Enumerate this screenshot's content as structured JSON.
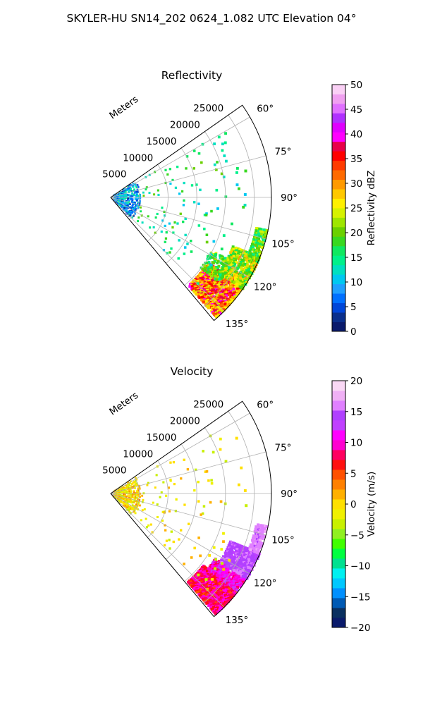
{
  "figure_title": "SKYLER-HU  SN14_202  0624_1.082 UTC Elevation 04°",
  "colors": {
    "grid": "#b0b0b0",
    "frame": "#000000",
    "reflectivity_colormap": [
      "#0a1a6b",
      "#0a2f8c",
      "#0046d8",
      "#0070ff",
      "#1fa0ff",
      "#00c8f0",
      "#00e0c0",
      "#00f08a",
      "#10e860",
      "#38d820",
      "#6ad000",
      "#9ee600",
      "#d6f200",
      "#fff000",
      "#ffc800",
      "#ff9a00",
      "#ff6a00",
      "#ff3a00",
      "#ff0000",
      "#e8004a",
      "#ff00ff",
      "#e000ff",
      "#b030ff",
      "#e070ff",
      "#f0a0f0",
      "#fad0f5"
    ],
    "velocity_colormap": [
      "#0a1a6b",
      "#0a3060",
      "#005ab4",
      "#0090ff",
      "#00c8ff",
      "#00f0f0",
      "#00e090",
      "#00ff40",
      "#40ff00",
      "#90f020",
      "#c8f000",
      "#f0f000",
      "#ffe000",
      "#ffb000",
      "#ff8000",
      "#ff5000",
      "#ff1010",
      "#ff0060",
      "#ff00d0",
      "#ff00ff",
      "#c040ff",
      "#b040ff",
      "#e080ff",
      "#f0b0f5",
      "#fad8f5"
    ]
  },
  "chart_data": [
    {
      "type": "heatmap",
      "projection": "polar-sector",
      "title": "Reflectivity",
      "radial_axis_label": "Meters",
      "radial_ticks": [
        5000,
        10000,
        15000,
        20000,
        25000
      ],
      "radial_tick_labels": [
        "5000",
        "10000",
        "15000",
        "20000",
        "25000"
      ],
      "rlim": [
        0,
        28000
      ],
      "angular_ticks_deg": [
        60,
        75,
        90,
        105,
        120,
        135
      ],
      "angular_tick_labels": [
        "60°",
        "75°",
        "90°",
        "105°",
        "120°",
        "135°"
      ],
      "sector_deg": [
        55,
        140
      ],
      "grid": true,
      "colorbar": {
        "label": "Reflectivity dBZ",
        "vmin": 0,
        "vmax": 50,
        "ticks": [
          0,
          5,
          10,
          15,
          20,
          25,
          30,
          35,
          40,
          45,
          50
        ],
        "tick_labels": [
          "0",
          "5",
          "10",
          "15",
          "20",
          "25",
          "30",
          "35",
          "40",
          "45",
          "50"
        ]
      },
      "echo_regions": [
        {
          "az": [
            124,
            139
          ],
          "r": [
            20500,
            28000
          ],
          "value": [
            24,
            40
          ],
          "density": 0.93
        },
        {
          "az": [
            112,
            125
          ],
          "r": [
            23000,
            28000
          ],
          "value": [
            16,
            30
          ],
          "density": 0.85
        },
        {
          "az": [
            102,
            113
          ],
          "r": [
            26000,
            28000
          ],
          "value": [
            14,
            24
          ],
          "density": 0.75
        },
        {
          "az": [
            118,
            128
          ],
          "r": [
            20000,
            24000
          ],
          "value": [
            14,
            24
          ],
          "density": 0.5
        },
        {
          "az": [
            58,
            135
          ],
          "r": [
            700,
            5200
          ],
          "value": [
            3,
            14
          ],
          "density": 0.22
        },
        {
          "az": [
            60,
            135
          ],
          "r": [
            5500,
            24000
          ],
          "value": [
            10,
            20
          ],
          "density": 0.018
        }
      ]
    },
    {
      "type": "heatmap",
      "projection": "polar-sector",
      "title": "Velocity",
      "radial_axis_label": "Meters",
      "radial_ticks": [
        5000,
        10000,
        15000,
        20000,
        25000
      ],
      "radial_tick_labels": [
        "5000",
        "10000",
        "15000",
        "20000",
        "25000"
      ],
      "rlim": [
        0,
        28000
      ],
      "angular_ticks_deg": [
        60,
        75,
        90,
        105,
        120,
        135
      ],
      "angular_tick_labels": [
        "60°",
        "75°",
        "90°",
        "105°",
        "120°",
        "135°"
      ],
      "sector_deg": [
        55,
        140
      ],
      "grid": true,
      "colorbar": {
        "label": "Velocity (m/s)",
        "vmin": -20,
        "vmax": 20,
        "ticks": [
          -20,
          -15,
          -10,
          -5,
          0,
          5,
          10,
          15,
          20
        ],
        "tick_labels": [
          "−20",
          "−15",
          "−10",
          "−5",
          "0",
          "5",
          "10",
          "15",
          "20"
        ]
      },
      "echo_regions": [
        {
          "az": [
            128,
            139
          ],
          "r": [
            20500,
            28000
          ],
          "value": [
            5,
            11
          ],
          "density": 0.95
        },
        {
          "az": [
            122,
            128
          ],
          "r": [
            21500,
            28000
          ],
          "value": [
            8,
            13
          ],
          "density": 0.9
        },
        {
          "az": [
            112,
            122
          ],
          "r": [
            22500,
            28000
          ],
          "value": [
            13,
            16
          ],
          "density": 0.85
        },
        {
          "az": [
            102,
            112
          ],
          "r": [
            26000,
            28000
          ],
          "value": [
            15,
            17
          ],
          "density": 0.75
        },
        {
          "az": [
            58,
            135
          ],
          "r": [
            700,
            5200
          ],
          "value": [
            -4,
            3
          ],
          "density": 0.22
        },
        {
          "az": [
            60,
            135
          ],
          "r": [
            5500,
            24000
          ],
          "value": [
            -4,
            2
          ],
          "density": 0.018
        }
      ]
    }
  ]
}
